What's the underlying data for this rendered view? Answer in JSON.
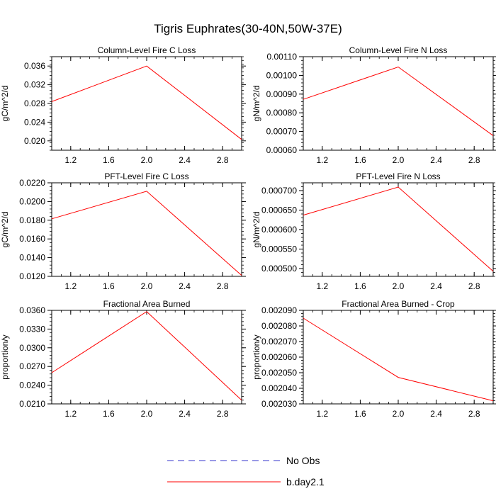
{
  "title": "Tigris Euphrates(30-40N,50W-37E)",
  "legend": [
    {
      "label": "No Obs",
      "color": "#3333cc",
      "dash": true
    },
    {
      "label": "b.day2.1",
      "color": "#ff0000",
      "dash": false
    }
  ],
  "chart_data": [
    {
      "type": "line",
      "title": "Column-Level Fire C Loss",
      "ylabel": "gC/m^2/d",
      "xlim": [
        1.0,
        3.0
      ],
      "ylim": [
        0.018,
        0.038
      ],
      "xticks": [
        "1.2",
        "1.6",
        "2.0",
        "2.4",
        "2.8"
      ],
      "yticks": [
        "0.020",
        "0.024",
        "0.028",
        "0.032",
        "0.036"
      ],
      "series": [
        {
          "name": "b.day2.1",
          "x": [
            1,
            2,
            3
          ],
          "values": [
            0.0284,
            0.036,
            0.0203
          ]
        }
      ]
    },
    {
      "type": "line",
      "title": "Column-Level Fire N Loss",
      "ylabel": "gN/m^2/d",
      "xlim": [
        1.0,
        3.0
      ],
      "ylim": [
        0.0006,
        0.0011
      ],
      "xticks": [
        "1.2",
        "1.6",
        "2.0",
        "2.4",
        "2.8"
      ],
      "yticks": [
        "0.00060",
        "0.00070",
        "0.00080",
        "0.00090",
        "0.00100",
        "0.00110"
      ],
      "series": [
        {
          "name": "b.day2.1",
          "x": [
            1,
            2,
            3
          ],
          "values": [
            0.000872,
            0.001045,
            0.000678
          ]
        }
      ]
    },
    {
      "type": "line",
      "title": "PFT-Level Fire C Loss",
      "ylabel": "gC/m^2/d",
      "xlim": [
        1.0,
        3.0
      ],
      "ylim": [
        0.012,
        0.022
      ],
      "xticks": [
        "1.2",
        "1.6",
        "2.0",
        "2.4",
        "2.8"
      ],
      "yticks": [
        "0.0120",
        "0.0140",
        "0.0160",
        "0.0180",
        "0.0200",
        "0.0220"
      ],
      "series": [
        {
          "name": "b.day2.1",
          "x": [
            1,
            2,
            3
          ],
          "values": [
            0.01815,
            0.0211,
            0.0121
          ]
        }
      ]
    },
    {
      "type": "line",
      "title": "PFT-Level Fire N Loss",
      "ylabel": "gN/m^2/d",
      "xlim": [
        1.0,
        3.0
      ],
      "ylim": [
        0.00048,
        0.00072
      ],
      "xticks": [
        "1.2",
        "1.6",
        "2.0",
        "2.4",
        "2.8"
      ],
      "yticks": [
        "0.000500",
        "0.000550",
        "0.000600",
        "0.000650",
        "0.000700"
      ],
      "series": [
        {
          "name": "b.day2.1",
          "x": [
            1,
            2,
            3
          ],
          "values": [
            0.000637,
            0.000709,
            0.000493
          ]
        }
      ]
    },
    {
      "type": "line",
      "title": "Fractional Area Burned",
      "ylabel": "proportion/y",
      "xlim": [
        1.0,
        3.0
      ],
      "ylim": [
        0.021,
        0.036
      ],
      "xticks": [
        "1.2",
        "1.6",
        "2.0",
        "2.4",
        "2.8"
      ],
      "yticks": [
        "0.0210",
        "0.0240",
        "0.0270",
        "0.0300",
        "0.0330",
        "0.0360"
      ],
      "series": [
        {
          "name": "b.day2.1",
          "x": [
            1,
            2,
            3
          ],
          "values": [
            0.026,
            0.0358,
            0.0216
          ]
        }
      ]
    },
    {
      "type": "line",
      "title": "Fractional Area Burned - Crop",
      "ylabel": "proportion/y",
      "xlim": [
        1.0,
        3.0
      ],
      "ylim": [
        0.00203,
        0.00209
      ],
      "xticks": [
        "1.2",
        "1.6",
        "2.0",
        "2.4",
        "2.8"
      ],
      "yticks": [
        "0.002030",
        "0.002040",
        "0.002050",
        "0.002060",
        "0.002070",
        "0.002080",
        "0.002090"
      ],
      "series": [
        {
          "name": "b.day2.1",
          "x": [
            1,
            2,
            3
          ],
          "values": [
            0.002085,
            0.002047,
            0.002032
          ]
        }
      ]
    }
  ]
}
